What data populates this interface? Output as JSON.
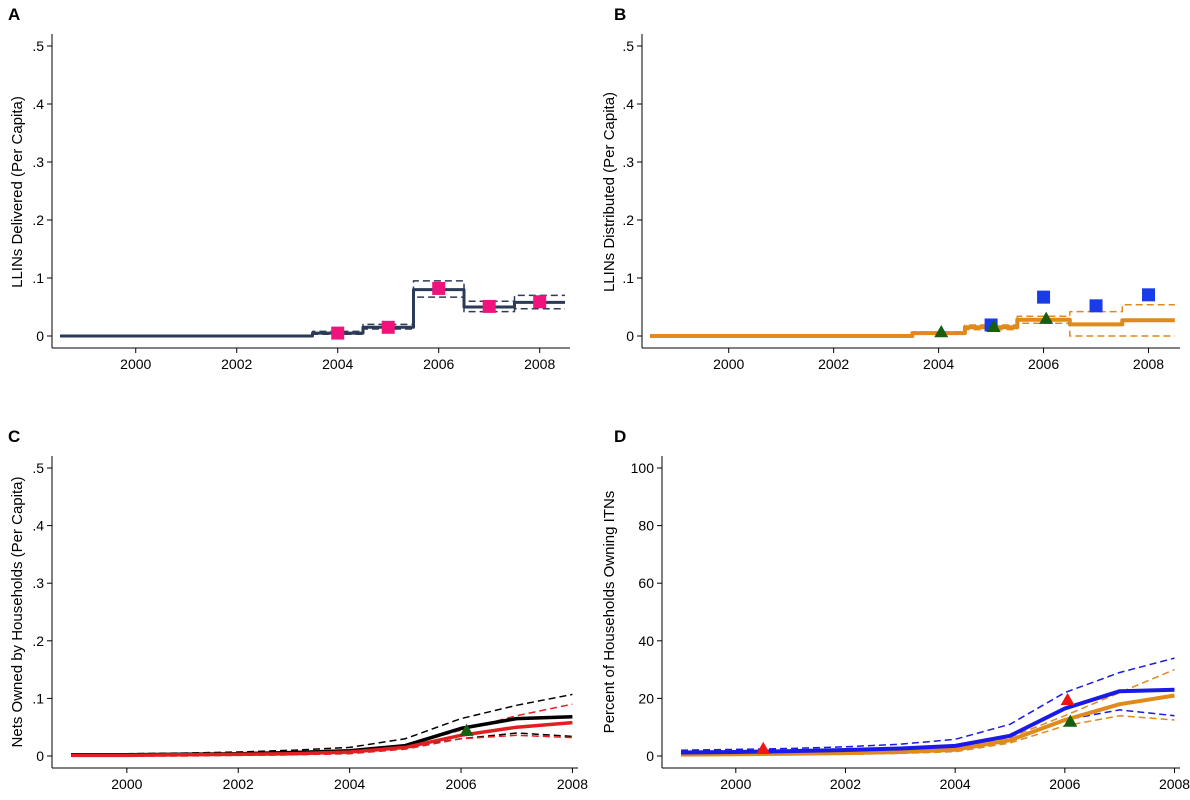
{
  "colors": {
    "navy": "#2b3a57",
    "magenta": "#f0137c",
    "orange": "#e0891c",
    "blue_square": "#1a3ce6",
    "green_triangle": "#15600f",
    "black": "#000000",
    "red": "#e02020",
    "blue_line": "#1a1ae6",
    "red_triangle": "#f01515"
  },
  "chart_data": [
    {
      "panel": "A",
      "type": "line",
      "title": "",
      "xlabel": "",
      "ylabel": "LLINs Delivered (Per Capita)",
      "xlim": [
        1998.5,
        2008.6
      ],
      "ylim": [
        0,
        0.52
      ],
      "x_ticks": [
        {
          "v": 2000,
          "label": "2000"
        },
        {
          "v": 2002,
          "label": "2002"
        },
        {
          "v": 2004,
          "label": "2004"
        },
        {
          "v": 2006,
          "label": "2006"
        },
        {
          "v": 2008,
          "label": "2008"
        }
      ],
      "y_ticks": [
        {
          "v": 0,
          "label": "0"
        },
        {
          "v": 0.1,
          "label": ".1"
        },
        {
          "v": 0.2,
          "label": ".2"
        },
        {
          "v": 0.3,
          "label": ".3"
        },
        {
          "v": 0.4,
          "label": ".4"
        },
        {
          "v": 0.5,
          "label": ".5"
        }
      ],
      "grid": false,
      "series": [
        {
          "line_style": "step",
          "color": "navy",
          "width": 3,
          "dashed": false,
          "x": [
            1998.5,
            2003.5,
            2003.5,
            2004.5,
            2004.5,
            2005.5,
            2005.5,
            2006.5,
            2006.5,
            2007.5,
            2007.5,
            2008.5
          ],
          "y": [
            0,
            0,
            0.005,
            0.005,
            0.015,
            0.015,
            0.08,
            0.08,
            0.05,
            0.05,
            0.058,
            0.058
          ]
        },
        {
          "line_style": "step",
          "color": "navy",
          "width": 1.5,
          "dashed": true,
          "x": [
            1998.5,
            2003.5,
            2003.5,
            2004.5,
            2004.5,
            2005.5,
            2005.5,
            2006.5,
            2006.5,
            2007.5,
            2007.5,
            2008.5
          ],
          "y": [
            0,
            0,
            0.008,
            0.008,
            0.02,
            0.02,
            0.095,
            0.095,
            0.06,
            0.06,
            0.07,
            0.07
          ]
        },
        {
          "line_style": "step",
          "color": "navy",
          "width": 1.5,
          "dashed": true,
          "x": [
            1998.5,
            2003.5,
            2003.5,
            2004.5,
            2004.5,
            2005.5,
            2005.5,
            2006.5,
            2006.5,
            2007.5,
            2007.5,
            2008.5
          ],
          "y": [
            0,
            0,
            0.003,
            0.003,
            0.012,
            0.012,
            0.067,
            0.067,
            0.042,
            0.042,
            0.047,
            0.047
          ]
        }
      ],
      "markers": [
        {
          "shape": "square",
          "color": "magenta",
          "x": [
            2004,
            2005,
            2006,
            2007,
            2008
          ],
          "y": [
            0.005,
            0.015,
            0.082,
            0.051,
            0.059
          ]
        }
      ]
    },
    {
      "panel": "B",
      "type": "line",
      "title": "",
      "xlabel": "",
      "ylabel": "LLINs Distributed (Per Capita)",
      "xlim": [
        1998.5,
        2008.6
      ],
      "ylim": [
        0,
        0.52
      ],
      "x_ticks": [
        {
          "v": 2000,
          "label": "2000"
        },
        {
          "v": 2002,
          "label": "2002"
        },
        {
          "v": 2004,
          "label": "2004"
        },
        {
          "v": 2006,
          "label": "2006"
        },
        {
          "v": 2008,
          "label": "2008"
        }
      ],
      "y_ticks": [
        {
          "v": 0,
          "label": "0"
        },
        {
          "v": 0.1,
          "label": ".1"
        },
        {
          "v": 0.2,
          "label": ".2"
        },
        {
          "v": 0.3,
          "label": ".3"
        },
        {
          "v": 0.4,
          "label": ".4"
        },
        {
          "v": 0.5,
          "label": ".5"
        }
      ],
      "grid": false,
      "series": [
        {
          "line_style": "step",
          "color": "orange",
          "width": 4,
          "dashed": false,
          "x": [
            1998.5,
            2003.5,
            2003.5,
            2004.5,
            2004.5,
            2005.5,
            2005.5,
            2006.5,
            2006.5,
            2007.5,
            2007.5,
            2008.5
          ],
          "y": [
            0,
            0,
            0.005,
            0.005,
            0.015,
            0.015,
            0.028,
            0.028,
            0.02,
            0.02,
            0.027,
            0.027
          ]
        },
        {
          "line_style": "step",
          "color": "orange",
          "width": 1.5,
          "dashed": true,
          "x": [
            1998.5,
            2003.5,
            2003.5,
            2004.5,
            2004.5,
            2005.5,
            2005.5,
            2006.5,
            2006.5,
            2007.5,
            2007.5,
            2008.5
          ],
          "y": [
            0,
            0,
            0.007,
            0.007,
            0.019,
            0.019,
            0.034,
            0.034,
            0.042,
            0.042,
            0.054,
            0.054
          ]
        },
        {
          "line_style": "step",
          "color": "orange",
          "width": 1.5,
          "dashed": true,
          "x": [
            1998.5,
            2003.5,
            2003.5,
            2004.5,
            2004.5,
            2005.5,
            2005.5,
            2006.5,
            2006.5,
            2007.5,
            2007.5,
            2008.5
          ],
          "y": [
            0,
            0,
            0.003,
            0.003,
            0.011,
            0.011,
            0.022,
            0.022,
            0.0,
            0.0,
            0.0,
            0.0
          ]
        }
      ],
      "markers": [
        {
          "shape": "square",
          "color": "blue_square",
          "x": [
            2005,
            2006,
            2007,
            2008
          ],
          "y": [
            0.019,
            0.067,
            0.052,
            0.071
          ]
        },
        {
          "shape": "triangle",
          "color": "green_triangle",
          "x": [
            2004.05,
            2005.05,
            2006.05
          ],
          "y": [
            0.007,
            0.016,
            0.03
          ]
        }
      ]
    },
    {
      "panel": "C",
      "type": "line",
      "title": "",
      "xlabel": "",
      "ylabel": "Nets Owned by Households (Per Capita)",
      "xlim": [
        1998.8,
        2008.1
      ],
      "ylim": [
        0,
        0.52
      ],
      "x_ticks": [
        {
          "v": 2000,
          "label": "2000"
        },
        {
          "v": 2002,
          "label": "2002"
        },
        {
          "v": 2004,
          "label": "2004"
        },
        {
          "v": 2006,
          "label": "2006"
        },
        {
          "v": 2008,
          "label": "2008"
        }
      ],
      "y_ticks": [
        {
          "v": 0,
          "label": "0"
        },
        {
          "v": 0.1,
          "label": ".1"
        },
        {
          "v": 0.2,
          "label": ".2"
        },
        {
          "v": 0.3,
          "label": ".3"
        },
        {
          "v": 0.4,
          "label": ".4"
        },
        {
          "v": 0.5,
          "label": ".5"
        }
      ],
      "grid": false,
      "series": [
        {
          "color": "black",
          "width": 1.5,
          "dashed": true,
          "x": [
            1999,
            2000,
            2001,
            2002,
            2003,
            2004,
            2005,
            2006,
            2007,
            2008
          ],
          "y": [
            0.004,
            0.004,
            0.005,
            0.007,
            0.01,
            0.015,
            0.03,
            0.065,
            0.088,
            0.107
          ]
        },
        {
          "color": "black",
          "width": 1.5,
          "dashed": true,
          "x": [
            1999,
            2000,
            2001,
            2002,
            2003,
            2004,
            2005,
            2006,
            2007,
            2008
          ],
          "y": [
            0.0,
            0.001,
            0.001,
            0.002,
            0.003,
            0.006,
            0.014,
            0.03,
            0.04,
            0.034
          ]
        },
        {
          "color": "red",
          "width": 1.5,
          "dashed": true,
          "x": [
            1999,
            2000,
            2001,
            2002,
            2003,
            2004,
            2005,
            2006,
            2007,
            2008
          ],
          "y": [
            0.002,
            0.002,
            0.003,
            0.004,
            0.005,
            0.008,
            0.018,
            0.045,
            0.07,
            0.09
          ]
        },
        {
          "color": "red",
          "width": 1.5,
          "dashed": true,
          "x": [
            1999,
            2000,
            2001,
            2002,
            2003,
            2004,
            2005,
            2006,
            2007,
            2008
          ],
          "y": [
            0.0,
            0.0,
            0.0,
            0.001,
            0.002,
            0.004,
            0.012,
            0.03,
            0.036,
            0.032
          ]
        },
        {
          "color": "black",
          "width": 3.5,
          "dashed": false,
          "x": [
            1999,
            2000,
            2001,
            2002,
            2003,
            2004,
            2005,
            2006,
            2007,
            2008
          ],
          "y": [
            0.002,
            0.002,
            0.003,
            0.004,
            0.006,
            0.009,
            0.018,
            0.048,
            0.065,
            0.068
          ]
        },
        {
          "color": "red",
          "width": 3.5,
          "dashed": false,
          "x": [
            1999,
            2000,
            2001,
            2002,
            2003,
            2004,
            2005,
            2006,
            2007,
            2008
          ],
          "y": [
            0.001,
            0.001,
            0.002,
            0.003,
            0.004,
            0.007,
            0.015,
            0.036,
            0.05,
            0.058
          ]
        }
      ],
      "markers": [
        {
          "shape": "triangle",
          "color": "green_triangle",
          "x": [
            2006.1
          ],
          "y": [
            0.044
          ]
        }
      ]
    },
    {
      "panel": "D",
      "type": "line",
      "title": "",
      "xlabel": "",
      "ylabel": "Percent of Households Owning ITNs",
      "xlim": [
        1998.8,
        2008.1
      ],
      "ylim": [
        0,
        104
      ],
      "x_ticks": [
        {
          "v": 2000,
          "label": "2000"
        },
        {
          "v": 2002,
          "label": "2002"
        },
        {
          "v": 2004,
          "label": "2004"
        },
        {
          "v": 2006,
          "label": "2006"
        },
        {
          "v": 2008,
          "label": "2008"
        }
      ],
      "y_ticks": [
        {
          "v": 0,
          "label": "0"
        },
        {
          "v": 20,
          "label": "20"
        },
        {
          "v": 40,
          "label": "40"
        },
        {
          "v": 60,
          "label": "60"
        },
        {
          "v": 80,
          "label": "80"
        },
        {
          "v": 100,
          "label": "100"
        }
      ],
      "grid": false,
      "series": [
        {
          "color": "blue_line",
          "width": 1.5,
          "dashed": true,
          "x": [
            1999,
            2000,
            2001,
            2002,
            2003,
            2004,
            2005,
            2006,
            2007,
            2008
          ],
          "y": [
            2,
            2.3,
            2.6,
            3.2,
            4.1,
            5.8,
            11,
            22,
            29,
            34
          ]
        },
        {
          "color": "blue_line",
          "width": 1.5,
          "dashed": true,
          "x": [
            1999,
            2000,
            2001,
            2002,
            2003,
            2004,
            2005,
            2006,
            2007,
            2008
          ],
          "y": [
            0.8,
            1,
            1.2,
            1.4,
            1.8,
            2.3,
            5,
            12.5,
            16,
            14
          ]
        },
        {
          "color": "orange",
          "width": 1.5,
          "dashed": true,
          "x": [
            1999,
            2000,
            2001,
            2002,
            2003,
            2004,
            2005,
            2006,
            2007,
            2008
          ],
          "y": [
            0.5,
            0.7,
            0.9,
            1.2,
            1.6,
            2.6,
            6.5,
            14,
            22,
            30
          ]
        },
        {
          "color": "orange",
          "width": 1.5,
          "dashed": true,
          "x": [
            1999,
            2000,
            2001,
            2002,
            2003,
            2004,
            2005,
            2006,
            2007,
            2008
          ],
          "y": [
            0.2,
            0.3,
            0.4,
            0.6,
            0.9,
            1.5,
            4.5,
            10.5,
            14,
            12.5
          ]
        },
        {
          "color": "orange",
          "width": 4,
          "dashed": false,
          "x": [
            1999,
            2000,
            2001,
            2002,
            2003,
            2004,
            2005,
            2006,
            2007,
            2008
          ],
          "y": [
            0.5,
            0.6,
            0.8,
            1.0,
            1.4,
            2.2,
            5.5,
            12.5,
            18,
            21
          ]
        },
        {
          "color": "blue_line",
          "width": 4,
          "dashed": false,
          "x": [
            1999,
            2000,
            2001,
            2002,
            2003,
            2004,
            2005,
            2006,
            2007,
            2008
          ],
          "y": [
            1.2,
            1.4,
            1.7,
            2.1,
            2.6,
            3.5,
            7,
            16.5,
            22.5,
            23
          ]
        }
      ],
      "markers": [
        {
          "shape": "triangle",
          "color": "red_triangle",
          "x": [
            2000.5,
            2006.05
          ],
          "y": [
            2.5,
            19.5
          ]
        },
        {
          "shape": "triangle",
          "color": "green_triangle",
          "x": [
            2006.1
          ],
          "y": [
            12
          ]
        }
      ]
    }
  ]
}
